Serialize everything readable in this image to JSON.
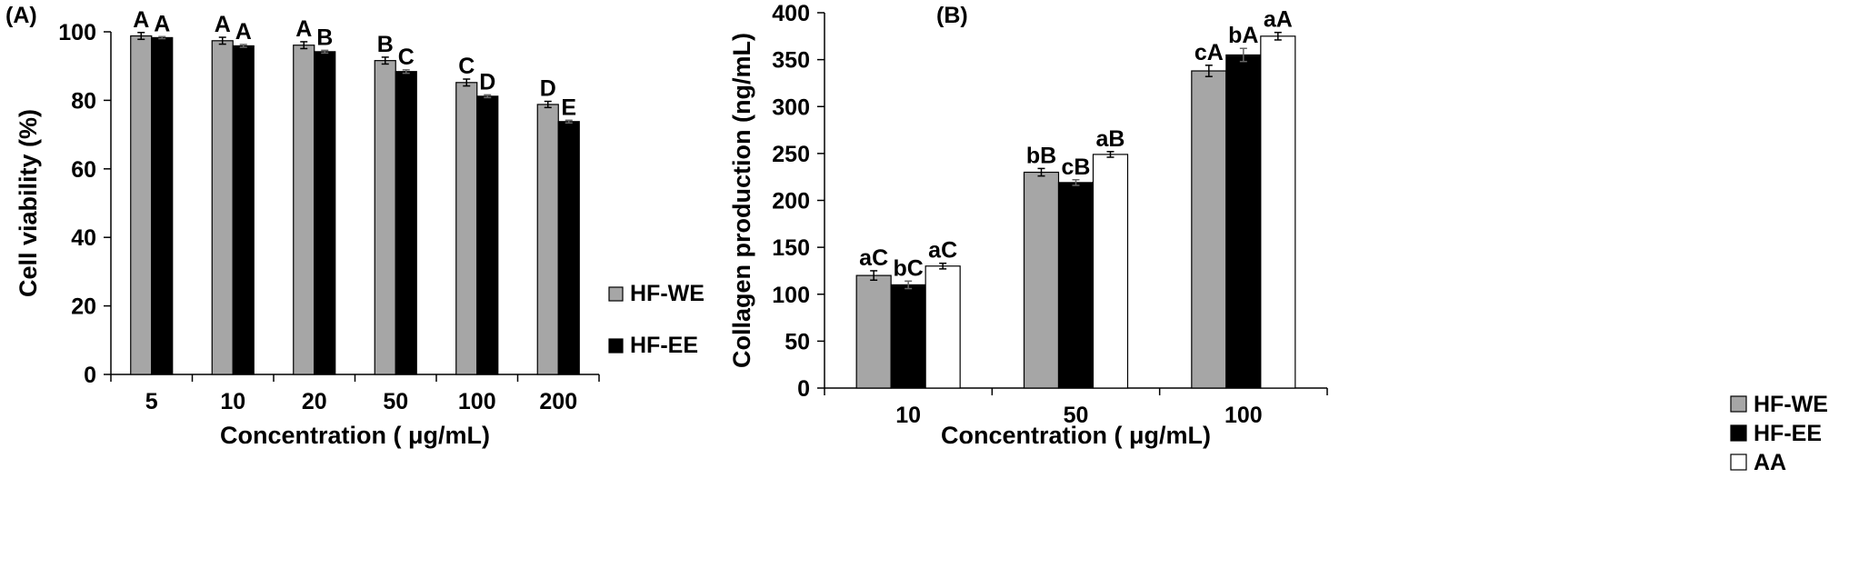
{
  "colors": {
    "HF-WE": "#a6a6a6",
    "HF-EE": "#000000",
    "AA": "#ffffff",
    "axis": "#000000"
  },
  "chart_data": [
    {
      "type": "bar",
      "panel_label": "(A)",
      "xlabel": "Concentration ( μg/mL)",
      "ylabel": "Cell viability (%)",
      "ylim": [
        0,
        100
      ],
      "yticks": [
        0,
        20,
        40,
        60,
        80,
        100
      ],
      "categories": [
        "5",
        "10",
        "20",
        "50",
        "100",
        "200"
      ],
      "grid": false,
      "legend_position": "right",
      "series": [
        {
          "name": "HF-WE",
          "values": [
            98.8,
            97.4,
            96.1,
            91.6,
            85.2,
            78.8
          ],
          "errors": [
            1.0,
            1.0,
            1.0,
            1.0,
            1.0,
            0.9
          ],
          "labels": [
            "A",
            "A",
            "A",
            "B",
            "C",
            "D"
          ]
        },
        {
          "name": "HF-EE",
          "values": [
            98.3,
            95.9,
            94.2,
            88.4,
            81.2,
            73.8
          ],
          "errors": [
            0.3,
            0.4,
            0.4,
            0.5,
            0.4,
            0.4
          ],
          "labels": [
            "A",
            "A",
            "B",
            "C",
            "D",
            "E"
          ]
        }
      ]
    },
    {
      "type": "bar",
      "panel_label": "(B)",
      "xlabel": "Concentration ( μg/mL)",
      "ylabel": "Collagen production (ng/mL)",
      "ylim": [
        0,
        400
      ],
      "yticks": [
        0,
        50,
        100,
        150,
        200,
        250,
        300,
        350,
        400
      ],
      "categories": [
        "10",
        "50",
        "100"
      ],
      "grid": false,
      "legend_position": "right",
      "series": [
        {
          "name": "HF-WE",
          "values": [
            120,
            230,
            338
          ],
          "errors": [
            5,
            4,
            6
          ],
          "labels": [
            "aC",
            "bB",
            "cA"
          ]
        },
        {
          "name": "HF-EE",
          "values": [
            110,
            219,
            355
          ],
          "errors": [
            4,
            3,
            7
          ],
          "labels": [
            "bC",
            "cB",
            "bA"
          ]
        },
        {
          "name": "AA",
          "values": [
            130,
            249,
            375
          ],
          "errors": [
            3,
            3,
            4
          ],
          "labels": [
            "aC",
            "aB",
            "aA"
          ]
        }
      ]
    }
  ]
}
